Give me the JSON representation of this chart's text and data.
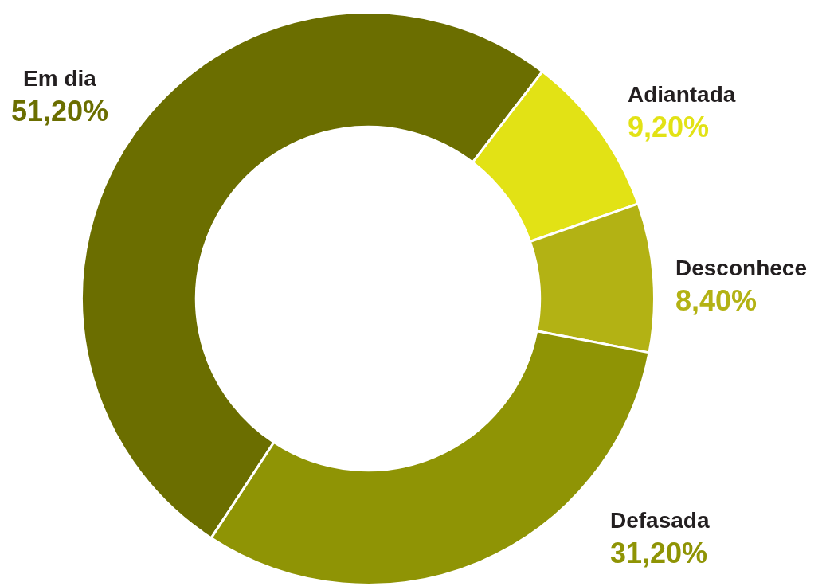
{
  "chart_data": {
    "type": "donut",
    "categories": [
      "Em dia",
      "Adiantada",
      "Desconhece",
      "Defasada"
    ],
    "values": [
      51.2,
      9.2,
      8.4,
      31.2
    ],
    "colors": [
      "#6b6e00",
      "#e2e215",
      "#b3b214",
      "#8f9405"
    ],
    "value_labels": [
      "51,20%",
      "9,20%",
      "8,40%",
      "31,20%"
    ],
    "legend": false
  }
}
